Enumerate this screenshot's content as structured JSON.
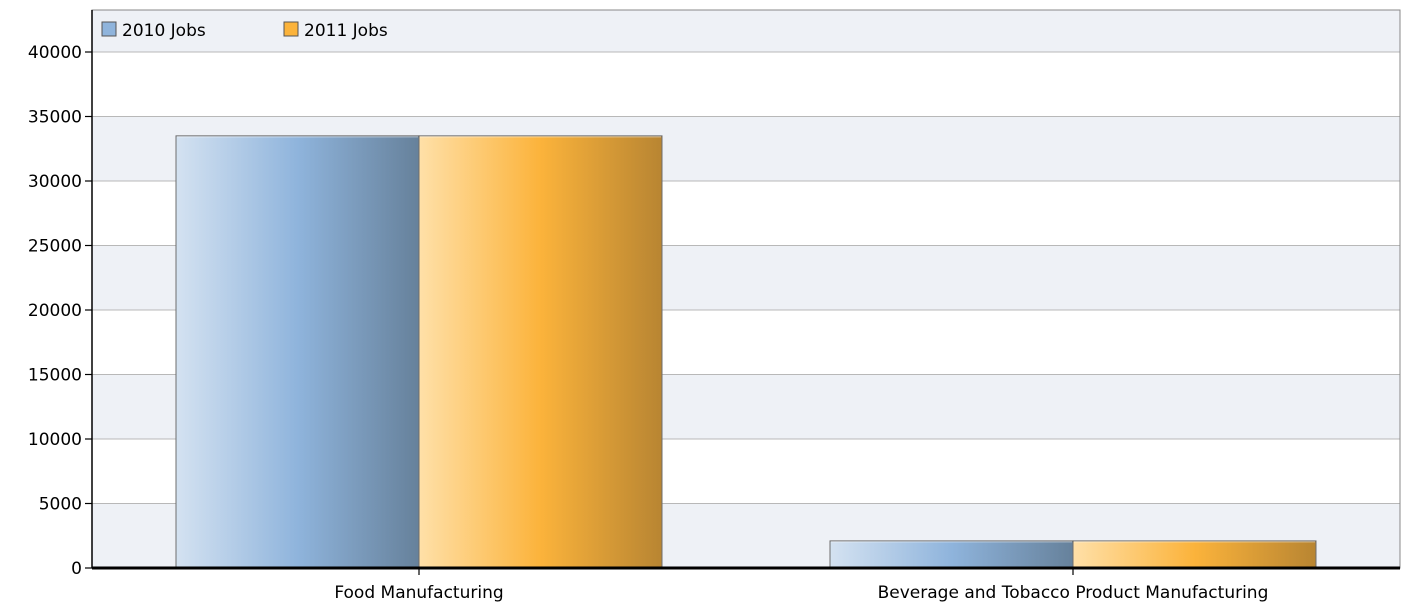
{
  "chart_data": {
    "type": "bar",
    "categories": [
      "Food Manufacturing",
      "Beverage and Tobacco Product Manufacturing"
    ],
    "series": [
      {
        "name": "2010 Jobs",
        "values": [
          33500,
          2100
        ],
        "color": "#8fb4dc"
      },
      {
        "name": "2011 Jobs",
        "values": [
          33500,
          2100
        ],
        "color": "#fbb33b"
      }
    ],
    "title": "",
    "xlabel": "",
    "ylabel": "",
    "ylim": [
      0,
      40000
    ],
    "yticks": [
      "0",
      "5000",
      "10000",
      "15000",
      "20000",
      "25000",
      "30000",
      "35000",
      "40000"
    ],
    "grid": true,
    "legend_position": "top-left",
    "plot_background_bands": [
      "#eef1f6",
      "#ffffff"
    ]
  }
}
